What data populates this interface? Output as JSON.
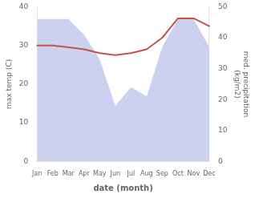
{
  "chart_data": {
    "type": "line",
    "xlabel": "date (month)",
    "ylabel": "max temp (C)",
    "y2label": "med. precipitation\n(kg/m2)",
    "categories": [
      "Jan",
      "Feb",
      "Mar",
      "Apr",
      "May",
      "Jun",
      "Jul",
      "Aug",
      "Sep",
      "Oct",
      "Nov",
      "Dec"
    ],
    "series": [
      {
        "type": "area",
        "axis": "y2",
        "color": "#b0b8e8",
        "values": [
          46,
          46,
          46,
          41,
          33,
          18,
          24,
          21,
          37,
          46,
          46,
          37
        ]
      },
      {
        "type": "line",
        "color": "#c85050",
        "values": [
          30,
          30,
          29.5,
          29,
          28,
          27.5,
          28,
          29,
          32,
          37,
          37,
          35
        ]
      }
    ],
    "ylim": [
      0,
      40
    ],
    "yticks": [
      0,
      10,
      20,
      30,
      40
    ],
    "y2lim": [
      0,
      50
    ],
    "y2ticks": [
      0,
      10,
      20,
      30,
      40,
      50
    ],
    "grid": false
  }
}
